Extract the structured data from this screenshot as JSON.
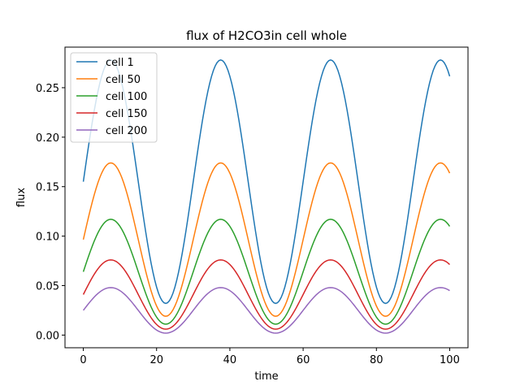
{
  "chart_data": {
    "type": "line",
    "title": "flux of H2CO3in cell whole",
    "xlabel": "time",
    "ylabel": "flux",
    "xlim": [
      -5,
      105
    ],
    "ylim": [
      -0.0128,
      0.291
    ],
    "xticks": [
      0,
      20,
      40,
      60,
      80,
      100
    ],
    "xtick_labels": [
      "0",
      "20",
      "40",
      "60",
      "80",
      "100"
    ],
    "yticks": [
      0.0,
      0.05,
      0.1,
      0.15,
      0.2,
      0.25
    ],
    "ytick_labels": [
      "0.00",
      "0.05",
      "0.10",
      "0.15",
      "0.20",
      "0.25"
    ],
    "grid": false,
    "legend_position": "upper-left",
    "waveform": {
      "period": 30,
      "peak_x": 7.5,
      "x_start": 0,
      "x_end": 100,
      "x_step": 0.5
    },
    "series": [
      {
        "name": "cell 1",
        "color": "#1f77b4",
        "min": 0.032,
        "max": 0.278
      },
      {
        "name": "cell 50",
        "color": "#ff7f0e",
        "min": 0.019,
        "max": 0.174
      },
      {
        "name": "cell 100",
        "color": "#2ca02c",
        "min": 0.011,
        "max": 0.117
      },
      {
        "name": "cell 150",
        "color": "#d62728",
        "min": 0.006,
        "max": 0.076
      },
      {
        "name": "cell 200",
        "color": "#9467bd",
        "min": 0.002,
        "max": 0.048
      }
    ]
  }
}
